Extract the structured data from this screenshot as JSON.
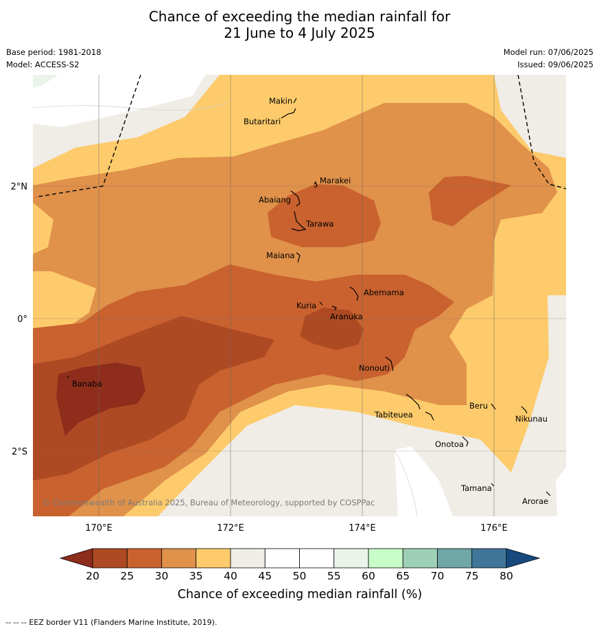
{
  "title_line1": "Chance of exceeding the median rainfall for",
  "title_line2": "21 June to 4 July 2025",
  "base_period": "Base period: 1981-2018",
  "model": "Model: ACCESS-S2",
  "model_run": "Model run: 07/06/2025",
  "issued": "Issued: 09/06/2025",
  "copyright": "© Commonwealth of Australia 2025, Bureau of Meteorology, supported by COSPPac",
  "footnote": "-- -- -- EEZ border V11 (Flanders Marine Institute, 2019).",
  "lon_labels": [
    "170°E",
    "172°E",
    "174°E",
    "176°E"
  ],
  "lat_labels": [
    "2°N",
    "0°",
    "2°S"
  ],
  "islands": [
    "Makin",
    "Butaritari",
    "Marakei",
    "Abaiang",
    "Tarawa",
    "Maiana",
    "Abemama",
    "Kuria",
    "Aranuka",
    "Nonouti",
    "Banaba",
    "Beru",
    "Nikunau",
    "Tabiteuea",
    "Onotoa",
    "Tamana",
    "Arorae"
  ],
  "colorbar": {
    "title": "Chance of exceeding median rainfall (%)",
    "ticks": [
      "20",
      "25",
      "30",
      "35",
      "40",
      "45",
      "50",
      "55",
      "60",
      "65",
      "70",
      "75",
      "80"
    ],
    "colors": [
      "#8e2d1c",
      "#ae4a23",
      "#c9622f",
      "#e0914a",
      "#fdcb6b",
      "#f0ece6",
      "#ffffff",
      "#ffffff",
      "#eaf4ea",
      "#c8fcc8",
      "#9ecfb7",
      "#6fa6a8",
      "#3f7699",
      "#17497f"
    ]
  },
  "chart_data": {
    "type": "heatmap",
    "variable": "Chance of exceeding median rainfall (%)",
    "x_range": [
      "169°E",
      "177°E"
    ],
    "y_range": [
      "3.5°N",
      "3°S"
    ],
    "levels": [
      20,
      25,
      30,
      35,
      40,
      45,
      50,
      55,
      60,
      65,
      70,
      75,
      80
    ]
  }
}
